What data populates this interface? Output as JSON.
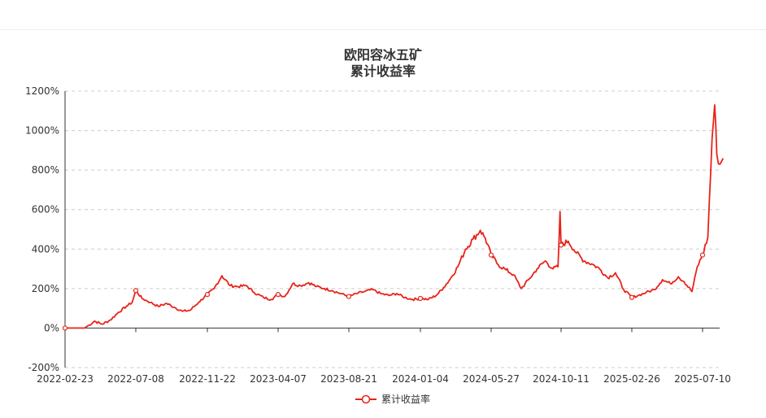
{
  "colors": {
    "series": "#e8231a",
    "grid": "#cccccc",
    "axis": "#333333"
  },
  "chart_data": {
    "type": "line",
    "title": "欧阳容冰五矿",
    "subtitle": "累计收益率",
    "y_ticks": [
      "1200%",
      "1000%",
      "800%",
      "600%",
      "400%",
      "200%",
      "0%",
      "-200%"
    ],
    "ylim": [
      -200,
      1200
    ],
    "x_ticks": [
      "2022-02-23",
      "2022-07-08",
      "2022-11-22",
      "2023-04-07",
      "2023-08-21",
      "2024-01-04",
      "2024-05-27",
      "2024-10-11",
      "2025-02-26",
      "2025-07-10"
    ],
    "grid": "horizontal-dashed",
    "legend_position": "bottom-center",
    "series": [
      {
        "name": "累计收益率",
        "points": [
          [
            "2022-02-23",
            0
          ],
          [
            "2022-04-01",
            0
          ],
          [
            "2022-04-10",
            15
          ],
          [
            "2022-04-20",
            35
          ],
          [
            "2022-05-05",
            20
          ],
          [
            "2022-05-20",
            40
          ],
          [
            "2022-06-05",
            80
          ],
          [
            "2022-06-20",
            110
          ],
          [
            "2022-07-01",
            130
          ],
          [
            "2022-07-08",
            190
          ],
          [
            "2022-07-20",
            150
          ],
          [
            "2022-08-05",
            130
          ],
          [
            "2022-08-20",
            110
          ],
          [
            "2022-09-05",
            125
          ],
          [
            "2022-09-20",
            105
          ],
          [
            "2022-10-05",
            85
          ],
          [
            "2022-10-20",
            90
          ],
          [
            "2022-11-05",
            130
          ],
          [
            "2022-11-22",
            170
          ],
          [
            "2022-12-05",
            200
          ],
          [
            "2022-12-20",
            265
          ],
          [
            "2023-01-05",
            215
          ],
          [
            "2023-01-20",
            210
          ],
          [
            "2023-02-05",
            215
          ],
          [
            "2023-02-20",
            180
          ],
          [
            "2023-03-10",
            155
          ],
          [
            "2023-03-25",
            145
          ],
          [
            "2023-04-07",
            170
          ],
          [
            "2023-04-20",
            160
          ],
          [
            "2023-05-05",
            225
          ],
          [
            "2023-05-20",
            215
          ],
          [
            "2023-06-05",
            230
          ],
          [
            "2023-06-20",
            210
          ],
          [
            "2023-07-05",
            200
          ],
          [
            "2023-07-20",
            190
          ],
          [
            "2023-08-05",
            175
          ],
          [
            "2023-08-21",
            160
          ],
          [
            "2023-09-05",
            175
          ],
          [
            "2023-09-20",
            185
          ],
          [
            "2023-10-05",
            195
          ],
          [
            "2023-10-20",
            175
          ],
          [
            "2023-11-05",
            165
          ],
          [
            "2023-11-20",
            175
          ],
          [
            "2023-12-05",
            155
          ],
          [
            "2023-12-20",
            145
          ],
          [
            "2024-01-04",
            150
          ],
          [
            "2024-01-20",
            145
          ],
          [
            "2024-02-05",
            165
          ],
          [
            "2024-02-20",
            205
          ],
          [
            "2024-03-05",
            250
          ],
          [
            "2024-03-20",
            310
          ],
          [
            "2024-04-05",
            400
          ],
          [
            "2024-04-20",
            450
          ],
          [
            "2024-05-05",
            495
          ],
          [
            "2024-05-15",
            455
          ],
          [
            "2024-05-27",
            370
          ],
          [
            "2024-06-10",
            320
          ],
          [
            "2024-06-25",
            295
          ],
          [
            "2024-07-10",
            270
          ],
          [
            "2024-07-25",
            200
          ],
          [
            "2024-08-10",
            250
          ],
          [
            "2024-08-25",
            300
          ],
          [
            "2024-09-10",
            340
          ],
          [
            "2024-09-25",
            300
          ],
          [
            "2024-10-05",
            310
          ],
          [
            "2024-10-09",
            590
          ],
          [
            "2024-10-11",
            420
          ],
          [
            "2024-10-25",
            440
          ],
          [
            "2024-11-10",
            380
          ],
          [
            "2024-11-25",
            340
          ],
          [
            "2024-12-10",
            325
          ],
          [
            "2024-12-25",
            300
          ],
          [
            "2025-01-10",
            255
          ],
          [
            "2025-01-25",
            280
          ],
          [
            "2025-02-10",
            195
          ],
          [
            "2025-02-26",
            155
          ],
          [
            "2025-03-10",
            165
          ],
          [
            "2025-03-25",
            180
          ],
          [
            "2025-04-10",
            195
          ],
          [
            "2025-04-25",
            245
          ],
          [
            "2025-05-10",
            225
          ],
          [
            "2025-05-25",
            260
          ],
          [
            "2025-06-05",
            235
          ],
          [
            "2025-06-20",
            185
          ],
          [
            "2025-06-30",
            310
          ],
          [
            "2025-07-10",
            370
          ],
          [
            "2025-07-20",
            460
          ],
          [
            "2025-07-28",
            960
          ],
          [
            "2025-08-02",
            1130
          ],
          [
            "2025-08-06",
            880
          ],
          [
            "2025-08-12",
            830
          ],
          [
            "2025-08-18",
            860
          ]
        ]
      }
    ]
  }
}
